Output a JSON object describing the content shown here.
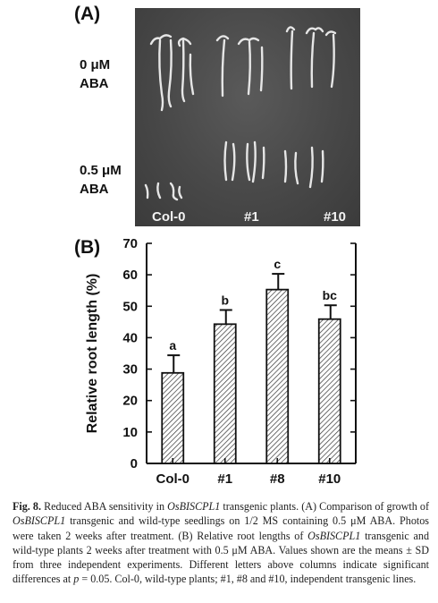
{
  "panel_a": {
    "letter": "(A)",
    "conditions": [
      {
        "line1": "0 μM",
        "line2": "ABA"
      },
      {
        "line1": "0.5 μM",
        "line2": "ABA"
      }
    ],
    "photo_labels": [
      "Col-0",
      "#1",
      "#10"
    ]
  },
  "panel_b": {
    "letter": "(B)"
  },
  "chart_data": {
    "type": "bar",
    "categories": [
      "Col-0",
      "#1",
      "#8",
      "#10"
    ],
    "values": [
      28.8,
      44.3,
      55.3,
      45.9
    ],
    "errors": [
      5.6,
      4.5,
      5.0,
      4.4
    ],
    "significance_letters": [
      "a",
      "b",
      "c",
      "bc"
    ],
    "ylabel": "Relative root length (%)",
    "xlabel": "",
    "ylim": [
      0,
      70
    ],
    "yticks": [
      0,
      10,
      20,
      30,
      40,
      50,
      60,
      70
    ],
    "grid": false,
    "bar_fill": "diagonal-hatch",
    "colors": {
      "bar_stroke": "#111111",
      "hatch": "#333333"
    }
  },
  "caption": {
    "fig_label": "Fig. 8.",
    "t1": " Reduced ABA sensitivity in ",
    "gene1": "OsBISCPL1",
    "t2": " transgenic plants. (A) Comparison of growth of ",
    "gene2": "OsBISCPL1",
    "t3": " transgenic and wild-type seedlings on 1/2 MS containing 0.5 μM ABA. Photos were taken 2 weeks after treatment. (B) Relative root lengths of ",
    "gene3": "OsBISCPL1",
    "t4": " transgenic and wild-type plants 2 weeks after treatment with 0.5 μM ABA. Values shown are the means ± SD from three independent experiments. Different letters above columns indicate significant differences at ",
    "pvar": "p",
    "t5": " = 0.05. Col-0, wild-type plants; #1, #8 and #10, independent transgenic lines."
  }
}
